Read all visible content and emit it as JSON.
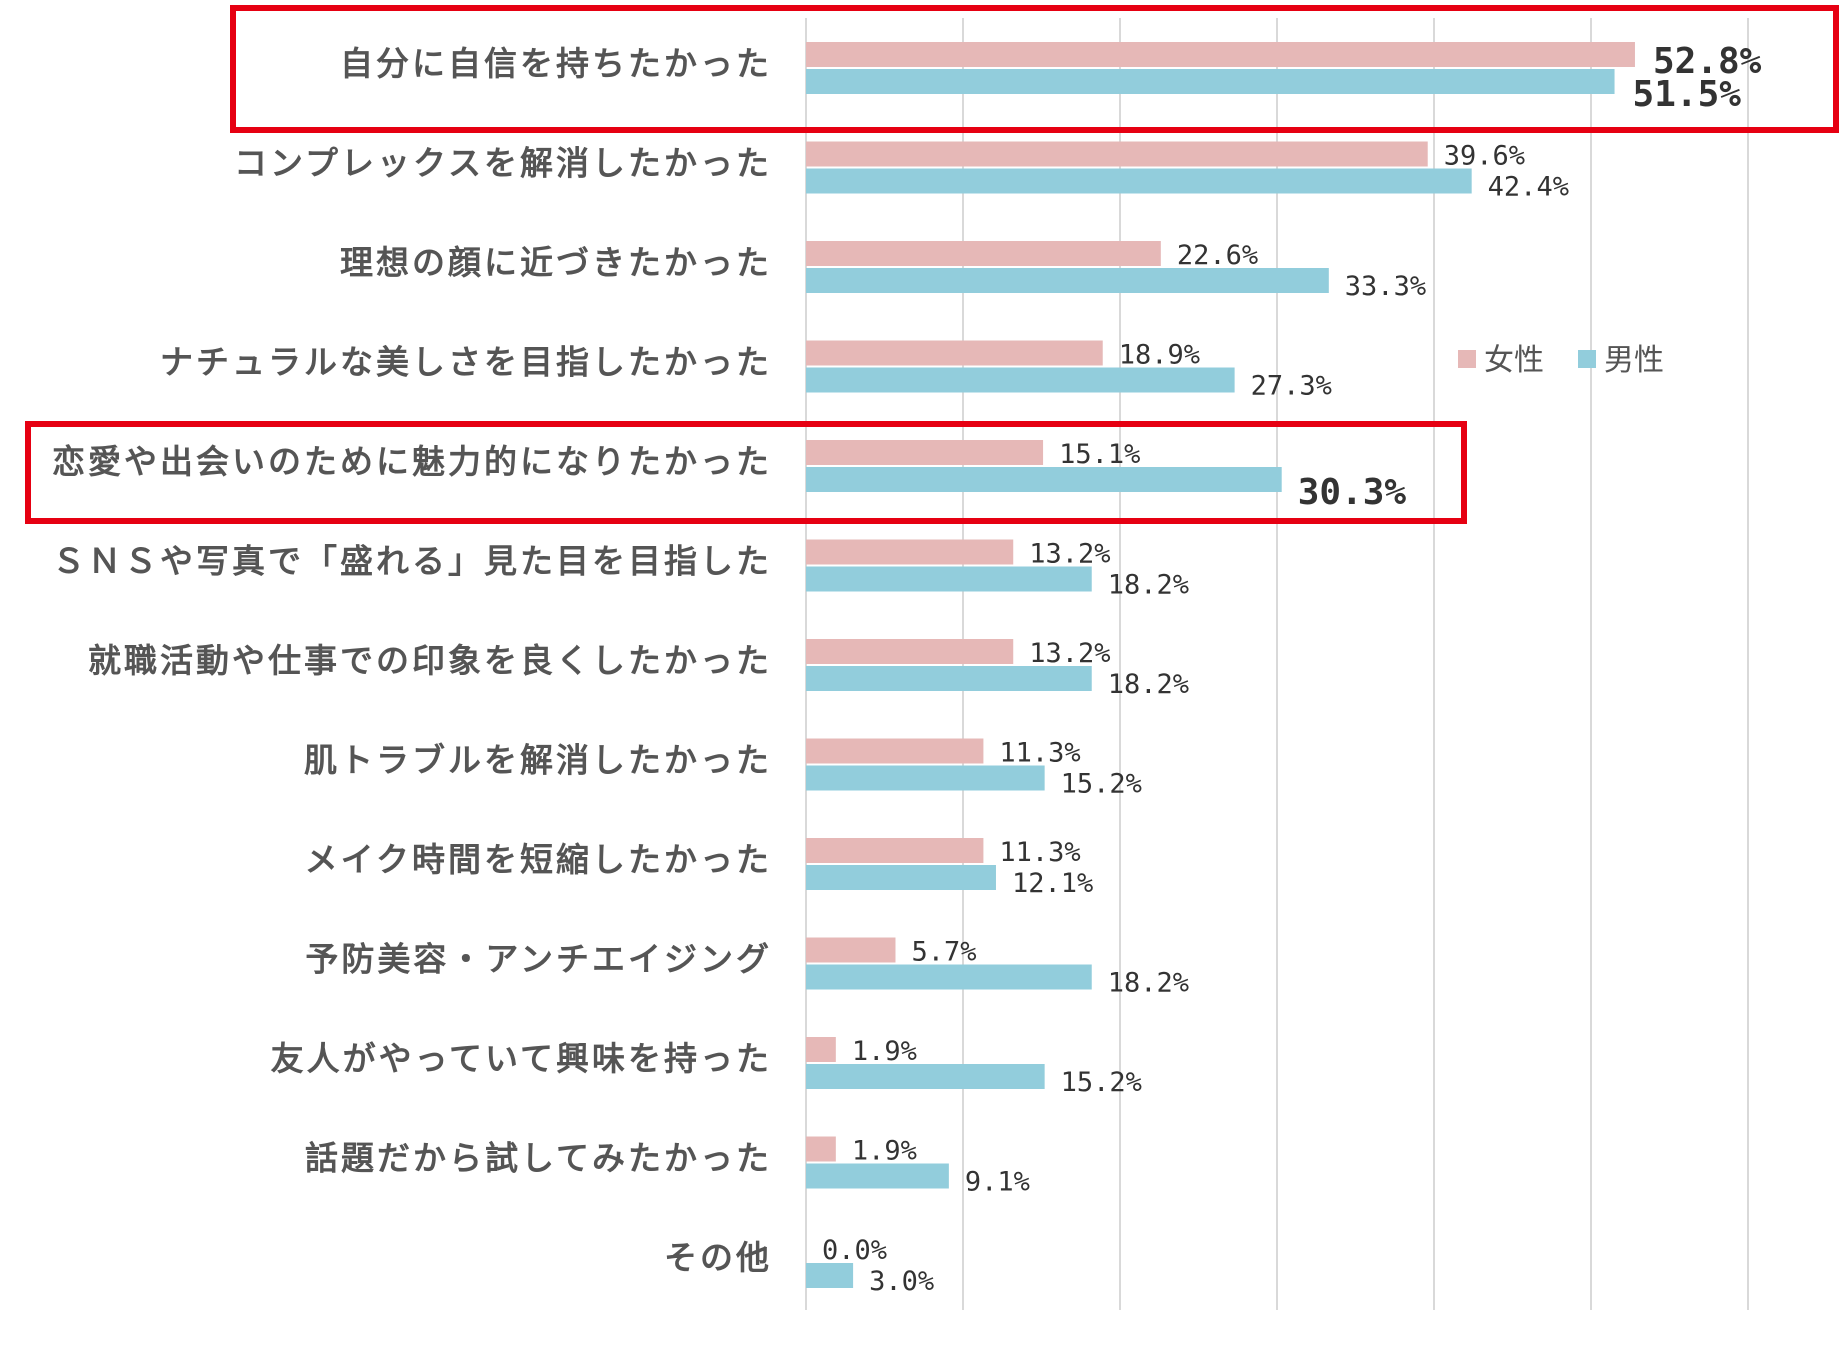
{
  "chart_data": {
    "type": "bar",
    "orientation": "horizontal",
    "categories": [
      "自分に自信を持ちたかった",
      "コンプレックスを解消したかった",
      "理想の顔に近づきたかった",
      "ナチュラルな美しさを目指したかった",
      "恋愛や出会いのために魅力的になりたかった",
      "ＳＮＳや写真で「盛れる」見た目を目指した",
      "就職活動や仕事での印象を良くしたかった",
      "肌トラブルを解消したかった",
      "メイク時間を短縮したかった",
      "予防美容・アンチエイジング",
      "友人がやっていて興味を持った",
      "話題だから試してみたかった",
      "その他"
    ],
    "series": [
      {
        "name": "女性",
        "color": "#e6b8b7",
        "values": [
          52.8,
          39.6,
          22.6,
          18.9,
          15.1,
          13.2,
          13.2,
          11.3,
          11.3,
          5.7,
          1.9,
          1.9,
          0.0
        ],
        "labels": [
          "52.8%",
          "39.6%",
          "22.6%",
          "18.9%",
          "15.1%",
          "13.2%",
          "13.2%",
          "11.3%",
          "11.3%",
          "5.7%",
          "1.9%",
          "1.9%",
          "0.0%"
        ]
      },
      {
        "name": "男性",
        "color": "#92cddc",
        "values": [
          51.5,
          42.4,
          33.3,
          27.3,
          30.3,
          18.2,
          18.2,
          15.2,
          12.1,
          18.2,
          15.2,
          9.1,
          3.0
        ],
        "labels": [
          "51.5%",
          "42.4%",
          "33.3%",
          "27.3%",
          "30.3%",
          "18.2%",
          "18.2%",
          "15.2%",
          "12.1%",
          "18.2%",
          "15.2%",
          "9.1%",
          "3.0%"
        ]
      }
    ],
    "xlim": [
      0,
      60
    ],
    "grid": true,
    "gridline_step": 10,
    "legend_placement": "right",
    "highlighted_categories": [
      0,
      4
    ],
    "highlight_color": "#e60012",
    "emphasized_labels": [
      {
        "series": 0,
        "index": 0
      },
      {
        "series": 1,
        "index": 0
      },
      {
        "series": 1,
        "index": 4
      }
    ]
  }
}
